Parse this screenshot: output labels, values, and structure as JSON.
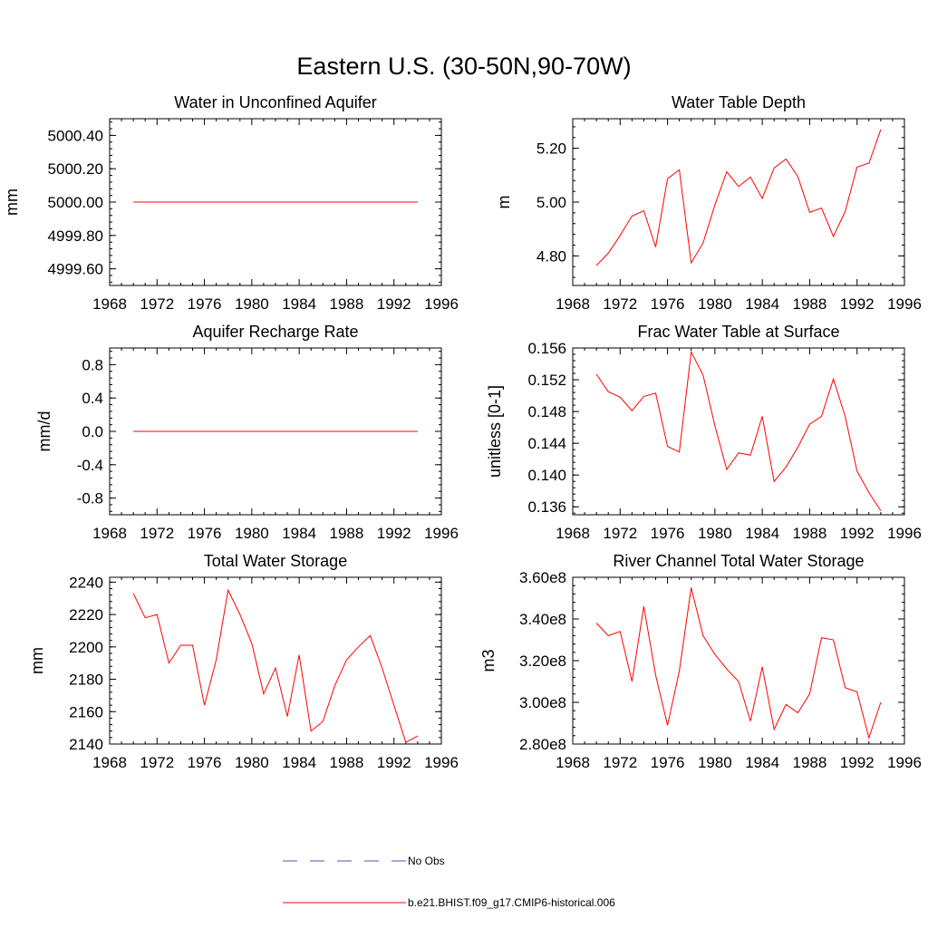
{
  "figure_title": "Eastern U.S. (30-50N,90-70W)",
  "legend": [
    {
      "label": "No Obs",
      "color": "#5555aa",
      "style": "dashed"
    },
    {
      "label": "b.e21.BHIST.f09_g17.CMIP6-historical.006",
      "color": "#ff0000",
      "style": "solid"
    }
  ],
  "chart_data": [
    {
      "type": "line",
      "title": "Water in Unconfined Aquifer",
      "xlabel": "",
      "ylabel": "mm",
      "xlim": [
        1968,
        1996
      ],
      "ylim": [
        4999.5,
        5000.5
      ],
      "xticks": [
        1968,
        1972,
        1976,
        1980,
        1984,
        1988,
        1992,
        1996
      ],
      "yticks": [
        4999.6,
        4999.8,
        5000.0,
        5000.2,
        5000.4
      ],
      "ytick_labels": [
        "4999.60",
        "4999.80",
        "5000.00",
        "5000.20",
        "5000.40"
      ],
      "x": [
        1970,
        1971,
        1972,
        1973,
        1974,
        1975,
        1976,
        1977,
        1978,
        1979,
        1980,
        1981,
        1982,
        1983,
        1984,
        1985,
        1986,
        1987,
        1988,
        1989,
        1990,
        1991,
        1992,
        1993,
        1994
      ],
      "series": [
        {
          "name": "b.e21.BHIST.f09_g17.CMIP6-historical.006",
          "color": "#ff0000",
          "values": [
            5000,
            5000,
            5000,
            5000,
            5000,
            5000,
            5000,
            5000,
            5000,
            5000,
            5000,
            5000,
            5000,
            5000,
            5000,
            5000,
            5000,
            5000,
            5000,
            5000,
            5000,
            5000,
            5000,
            5000,
            5000
          ]
        }
      ]
    },
    {
      "type": "line",
      "title": "Water Table Depth",
      "xlabel": "",
      "ylabel": "m",
      "xlim": [
        1968,
        1996
      ],
      "ylim": [
        4.69,
        5.31
      ],
      "xticks": [
        1968,
        1972,
        1976,
        1980,
        1984,
        1988,
        1992,
        1996
      ],
      "yticks": [
        4.8,
        5.0,
        5.2
      ],
      "ytick_labels": [
        "4.80",
        "5.00",
        "5.20"
      ],
      "x": [
        1970,
        1971,
        1972,
        1973,
        1974,
        1975,
        1976,
        1977,
        1978,
        1979,
        1980,
        1981,
        1982,
        1983,
        1984,
        1985,
        1986,
        1987,
        1988,
        1989,
        1990,
        1991,
        1992,
        1993,
        1994
      ],
      "series": [
        {
          "name": "b.e21.BHIST.f09_g17.CMIP6-historical.006",
          "color": "#ff0000",
          "values": [
            4.764,
            4.81,
            4.876,
            4.948,
            4.968,
            4.833,
            5.087,
            5.12,
            4.774,
            4.848,
            4.99,
            5.113,
            5.058,
            5.093,
            5.013,
            5.127,
            5.16,
            5.095,
            4.962,
            4.978,
            4.872,
            4.965,
            5.13,
            5.145,
            5.27
          ]
        }
      ]
    },
    {
      "type": "line",
      "title": "Aquifer Recharge Rate",
      "xlabel": "",
      "ylabel": "mm/d",
      "xlim": [
        1968,
        1996
      ],
      "ylim": [
        -1.0,
        1.0
      ],
      "xticks": [
        1968,
        1972,
        1976,
        1980,
        1984,
        1988,
        1992,
        1996
      ],
      "yticks": [
        -0.8,
        -0.4,
        0.0,
        0.4,
        0.8
      ],
      "ytick_labels": [
        "-0.8",
        "-0.4",
        "0.0",
        "0.4",
        "0.8"
      ],
      "x": [
        1970,
        1971,
        1972,
        1973,
        1974,
        1975,
        1976,
        1977,
        1978,
        1979,
        1980,
        1981,
        1982,
        1983,
        1984,
        1985,
        1986,
        1987,
        1988,
        1989,
        1990,
        1991,
        1992,
        1993,
        1994
      ],
      "series": [
        {
          "name": "b.e21.BHIST.f09_g17.CMIP6-historical.006",
          "color": "#ff0000",
          "values": [
            0,
            0,
            0,
            0,
            0,
            0,
            0,
            0,
            0,
            0,
            0,
            0,
            0,
            0,
            0,
            0,
            0,
            0,
            0,
            0,
            0,
            0,
            0,
            0,
            0
          ]
        }
      ]
    },
    {
      "type": "line",
      "title": "Frac Water Table at Surface",
      "xlabel": "",
      "ylabel": "unitless [0-1]",
      "xlim": [
        1968,
        1996
      ],
      "ylim": [
        0.135,
        0.156
      ],
      "xticks": [
        1968,
        1972,
        1976,
        1980,
        1984,
        1988,
        1992,
        1996
      ],
      "yticks": [
        0.136,
        0.14,
        0.144,
        0.148,
        0.152,
        0.156
      ],
      "ytick_labels": [
        "0.136",
        "0.140",
        "0.144",
        "0.148",
        "0.152",
        "0.156"
      ],
      "x": [
        1970,
        1971,
        1972,
        1973,
        1974,
        1975,
        1976,
        1977,
        1978,
        1979,
        1980,
        1981,
        1982,
        1983,
        1984,
        1985,
        1986,
        1987,
        1988,
        1989,
        1990,
        1991,
        1992,
        1993,
        1994
      ],
      "series": [
        {
          "name": "b.e21.BHIST.f09_g17.CMIP6-historical.006",
          "color": "#ff0000",
          "values": [
            0.1527,
            0.1505,
            0.1498,
            0.1481,
            0.1499,
            0.1503,
            0.1436,
            0.1429,
            0.1555,
            0.1526,
            0.1462,
            0.1407,
            0.1428,
            0.1425,
            0.1474,
            0.1392,
            0.141,
            0.1435,
            0.1464,
            0.1474,
            0.1521,
            0.1474,
            0.1405,
            0.1378,
            0.1355
          ]
        }
      ]
    },
    {
      "type": "line",
      "title": "Total Water Storage",
      "xlabel": "",
      "ylabel": "mm",
      "xlim": [
        1968,
        1996
      ],
      "ylim": [
        2140,
        2243
      ],
      "xticks": [
        1968,
        1972,
        1976,
        1980,
        1984,
        1988,
        1992,
        1996
      ],
      "yticks": [
        2140,
        2160,
        2180,
        2200,
        2220,
        2240
      ],
      "ytick_labels": [
        "2140",
        "2160",
        "2180",
        "2200",
        "2220",
        "2240"
      ],
      "x": [
        1970,
        1971,
        1972,
        1973,
        1974,
        1975,
        1976,
        1977,
        1978,
        1979,
        1980,
        1981,
        1982,
        1983,
        1984,
        1985,
        1986,
        1987,
        1988,
        1989,
        1990,
        1991,
        1992,
        1993,
        1994
      ],
      "series": [
        {
          "name": "b.e21.BHIST.f09_g17.CMIP6-historical.006",
          "color": "#ff0000",
          "values": [
            2233,
            2218,
            2220,
            2190,
            2201,
            2201,
            2164,
            2192,
            2235,
            2220,
            2202,
            2171,
            2187,
            2157,
            2195,
            2148,
            2154,
            2176,
            2192,
            2200,
            2207,
            2187,
            2164,
            2141,
            2145
          ]
        }
      ]
    },
    {
      "type": "line",
      "title": "River Channel Total Water Storage",
      "xlabel": "",
      "ylabel": "m3",
      "xlim": [
        1968,
        1996
      ],
      "ylim": [
        280000000,
        360000000
      ],
      "xticks": [
        1968,
        1972,
        1976,
        1980,
        1984,
        1988,
        1992,
        1996
      ],
      "yticks": [
        280000000,
        300000000,
        320000000,
        340000000,
        360000000
      ],
      "ytick_labels": [
        "2.80e8",
        "3.00e8",
        "3.20e8",
        "3.40e8",
        "3.60e8"
      ],
      "x": [
        1970,
        1971,
        1972,
        1973,
        1974,
        1975,
        1976,
        1977,
        1978,
        1979,
        1980,
        1981,
        1982,
        1983,
        1984,
        1985,
        1986,
        1987,
        1988,
        1989,
        1990,
        1991,
        1992,
        1993,
        1994
      ],
      "series": [
        {
          "name": "b.e21.BHIST.f09_g17.CMIP6-historical.006",
          "color": "#ff0000",
          "values": [
            338000000,
            332000000,
            334000000,
            310000000,
            346000000,
            313000000,
            289000000,
            315000000,
            355000000,
            332000000,
            323000000,
            316000000,
            310000000,
            291000000,
            317000000,
            287000000,
            299000000,
            295000000,
            304000000,
            331000000,
            330000000,
            307000000,
            305000000,
            283000000,
            300000000
          ]
        }
      ]
    }
  ]
}
